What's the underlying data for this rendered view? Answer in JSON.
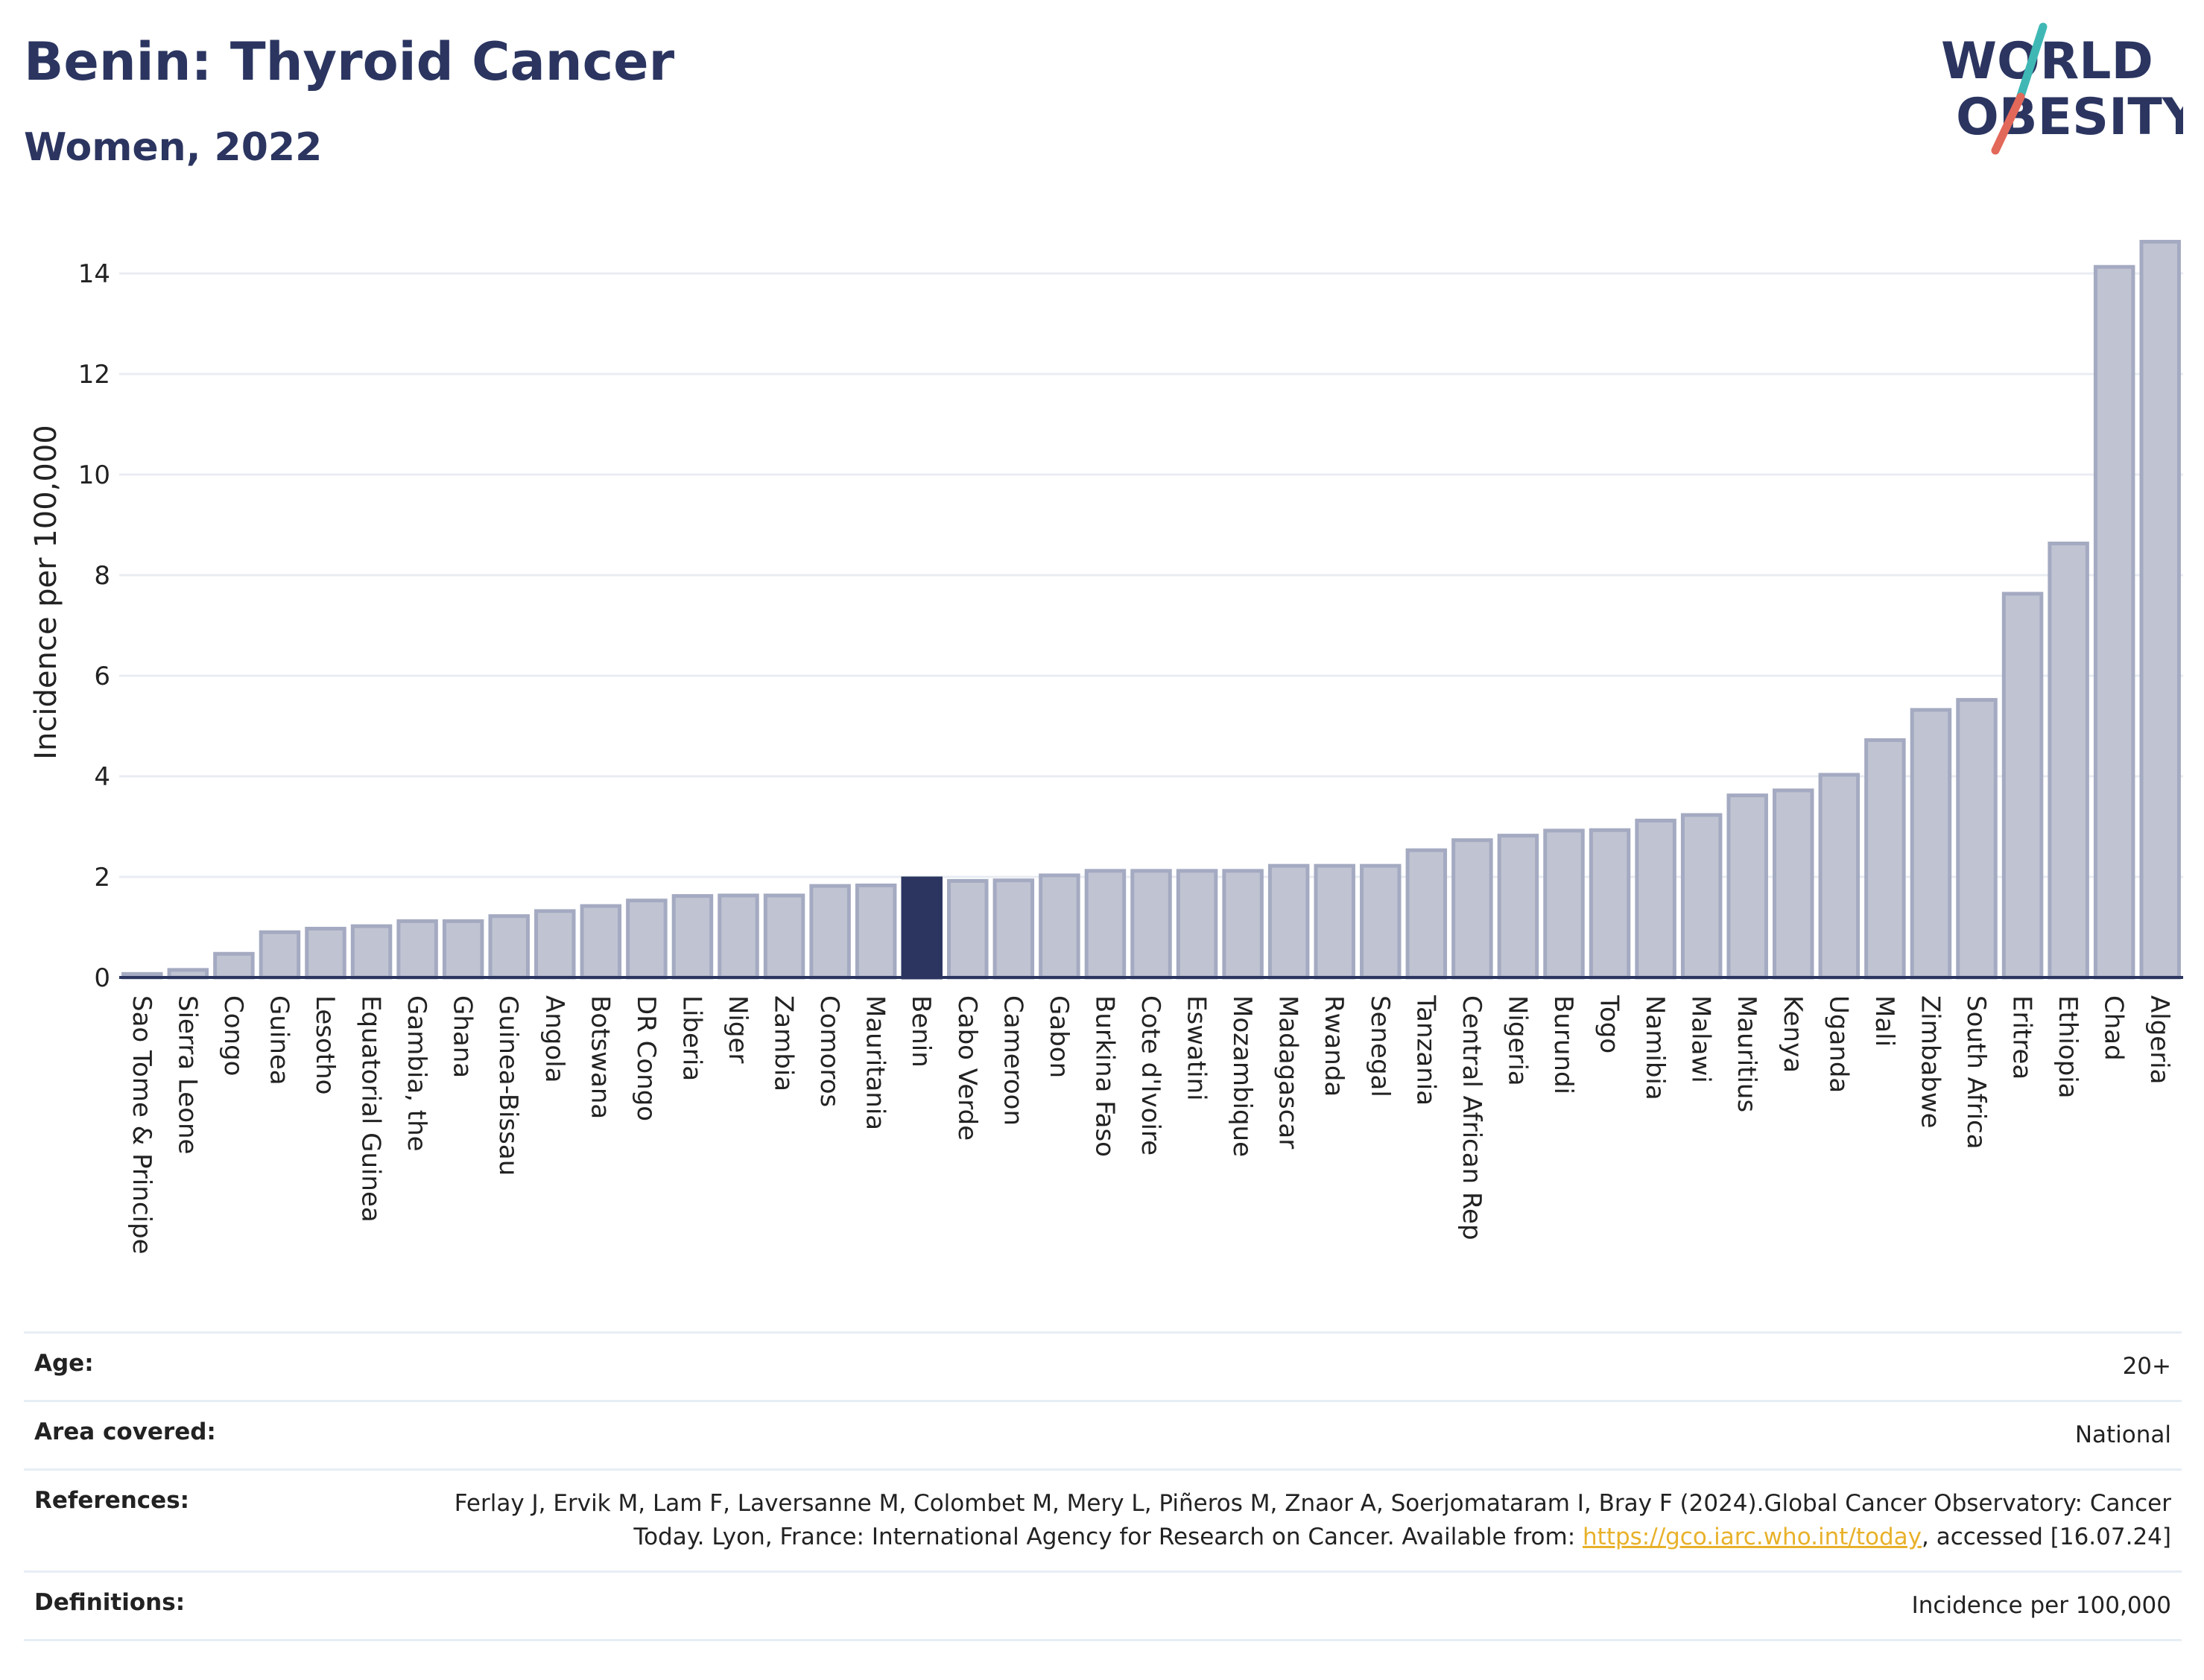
{
  "title": "Benin: Thyroid Cancer",
  "subtitle": "Women, 2022",
  "logo": {
    "line1": "WORLD",
    "line2": "OBESITY",
    "stripe_colors": [
      "#3fb8b5",
      "#e2685a"
    ],
    "text_color": "#2b3560"
  },
  "colors": {
    "bar": "#c0c4d2",
    "bar_edge": "#a4aac1",
    "highlight": "#2b3560",
    "grid": "#e9ecf2",
    "link": "#e8b12a"
  },
  "chart_data": {
    "type": "bar",
    "ylabel": "Incidence per 100,000",
    "ylim": [
      0,
      14.6
    ],
    "yticks": [
      0,
      2,
      4,
      6,
      8,
      10,
      12,
      14
    ],
    "grid": true,
    "highlight": "Benin",
    "categories": [
      "Sao Tome & Principe",
      "Sierra Leone",
      "Congo",
      "Guinea",
      "Lesotho",
      "Equatorial Guinea",
      "Gambia, the",
      "Ghana",
      "Guinea-Bissau",
      "Angola",
      "Botswana",
      "DR Congo",
      "Liberia",
      "Niger",
      "Zambia",
      "Comoros",
      "Mauritania",
      "Benin",
      "Cabo Verde",
      "Cameroon",
      "Gabon",
      "Burkina Faso",
      "Cote d'Ivoire",
      "Eswatini",
      "Mozambique",
      "Madagascar",
      "Rwanda",
      "Senegal",
      "Tanzania",
      "Central African Rep",
      "Nigeria",
      "Burundi",
      "Togo",
      "Namibia",
      "Malawi",
      "Mauritius",
      "Kenya",
      "Uganda",
      "Mali",
      "Zimbabwe",
      "South Africa",
      "Eritrea",
      "Ethiopia",
      "Chad",
      "Algeria"
    ],
    "values": [
      0.07,
      0.15,
      0.47,
      0.9,
      0.97,
      1.02,
      1.12,
      1.12,
      1.22,
      1.32,
      1.42,
      1.53,
      1.62,
      1.63,
      1.63,
      1.82,
      1.83,
      1.97,
      1.92,
      1.93,
      2.03,
      2.12,
      2.12,
      2.12,
      2.12,
      2.22,
      2.22,
      2.22,
      2.53,
      2.73,
      2.82,
      2.92,
      2.93,
      3.12,
      3.23,
      3.62,
      3.72,
      4.03,
      4.72,
      5.32,
      5.52,
      7.63,
      8.63,
      14.13,
      14.63
    ]
  },
  "info": [
    {
      "label": "Age:",
      "value": "20+"
    },
    {
      "label": "Area covered:",
      "value": "National"
    },
    {
      "label": "References:",
      "value_pre": "Ferlay J, Ervik M, Lam F, Laversanne M, Colombet M, Mery L, Piñeros M, Znaor A, Soerjomataram I, Bray F (2024).Global Cancer Observatory: Cancer Today. Lyon, France: International Agency for Research on Cancer. Available from: ",
      "link": "https://gco.iarc.who.int/today",
      "value_post": ", accessed [16.07.24]"
    },
    {
      "label": "Definitions:",
      "value": "Incidence per 100,000"
    }
  ]
}
